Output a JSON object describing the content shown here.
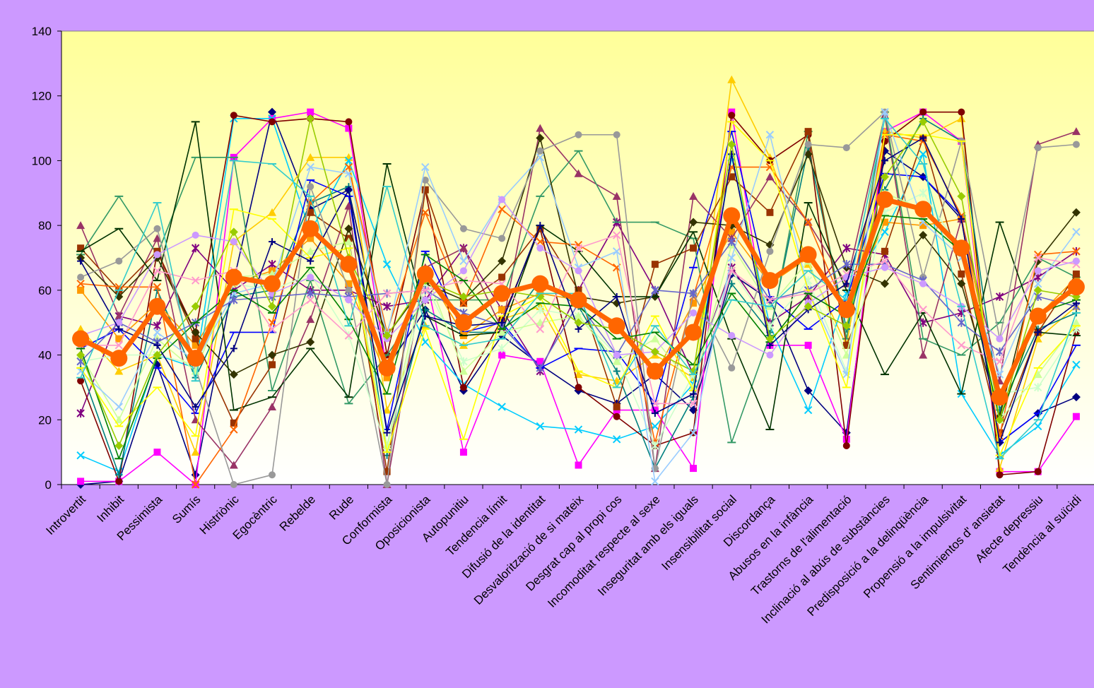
{
  "chart_data": {
    "type": "line",
    "ylim": [
      0,
      140
    ],
    "y_ticks": [
      0,
      20,
      40,
      60,
      80,
      100,
      120,
      140
    ],
    "grid": false,
    "legend": "none",
    "categories": [
      "Introvertit",
      "Inhibit",
      "Pessimista",
      "Sumís",
      "Histriònic",
      "Egocèntric",
      "Rebelde",
      "Rude",
      "Conformista",
      "Oposicionista",
      "Autopunitiu",
      "Tendencia límit",
      "Difusió de la identitat",
      "Desvalorització de si mateix",
      "Desgrat cap al propi cos",
      "Incomoditat respecte al sexe",
      "Inseguritat amb els iguals",
      "Insensibilitat social",
      "Discordança",
      "Abusos en la infància",
      "Trastorns de l'alimentació",
      "Inclinació al abús de substàncies",
      "Predisposició a la delinqüència",
      "Propensió a la impulsivitat",
      "Sentimientos d' ansietat",
      "Afecte depressiu",
      "Tendència al suïcidi"
    ],
    "mean_series": {
      "color": "#ff6600",
      "values": [
        45,
        39,
        55,
        39,
        64,
        62,
        79,
        68,
        36,
        65,
        50,
        59,
        62,
        57,
        49,
        35,
        47,
        83,
        63,
        71,
        54,
        88,
        85,
        73,
        27,
        52,
        61
      ]
    },
    "series": [
      {
        "color": "#000080",
        "marker": "diamond",
        "values": [
          0,
          1,
          37,
          3,
          63,
          115,
          85,
          91,
          36,
          54,
          29,
          46,
          37,
          29,
          25,
          34,
          23,
          65,
          57,
          29,
          16,
          103,
          95,
          82,
          13,
          22,
          27
        ]
      },
      {
        "color": "#ff00ff",
        "marker": "square",
        "values": [
          1,
          1,
          10,
          0,
          101,
          113,
          115,
          110,
          35,
          65,
          10,
          40,
          38,
          6,
          23,
          23,
          5,
          115,
          43,
          43,
          14,
          109,
          115,
          106,
          4,
          4,
          21
        ]
      },
      {
        "color": "#ffcc00",
        "marker": "triangle",
        "values": [
          48,
          35,
          40,
          10,
          75,
          84,
          101,
          101,
          23,
          49,
          43,
          51,
          55,
          34,
          32,
          40,
          33,
          125,
          101,
          68,
          43,
          109,
          107,
          113,
          5,
          45,
          55
        ]
      },
      {
        "color": "#00ccff",
        "marker": "x",
        "values": [
          9,
          4,
          40,
          36,
          113,
          113,
          78,
          100,
          68,
          44,
          31,
          24,
          18,
          17,
          14,
          18,
          31,
          101,
          49,
          23,
          59,
          78,
          102,
          28,
          9,
          18,
          37
        ]
      },
      {
        "color": "#800080",
        "marker": "star",
        "values": [
          22,
          52,
          49,
          73,
          60,
          68,
          60,
          60,
          55,
          57,
          73,
          54,
          35,
          60,
          81,
          60,
          34,
          67,
          50,
          58,
          73,
          71,
          50,
          53,
          58,
          64,
          72
        ]
      },
      {
        "color": "#800000",
        "marker": "circle",
        "values": [
          32,
          1,
          72,
          47,
          114,
          112,
          113,
          112,
          40,
          91,
          30,
          51,
          79,
          30,
          21,
          12,
          16,
          114,
          100,
          108,
          12,
          106,
          115,
          115,
          3,
          4,
          47
        ]
      },
      {
        "color": "#008080",
        "marker": "plus",
        "values": [
          36,
          3,
          60,
          33,
          58,
          60,
          87,
          92,
          9,
          54,
          47,
          47,
          63,
          55,
          35,
          5,
          27,
          62,
          47,
          104,
          48,
          91,
          113,
          106,
          23,
          48,
          53
        ]
      },
      {
        "color": "#0000ff",
        "marker": "dash",
        "values": [
          42,
          48,
          36,
          22,
          47,
          47,
          94,
          89,
          17,
          72,
          47,
          50,
          36,
          42,
          41,
          25,
          67,
          109,
          58,
          48,
          57,
          96,
          95,
          83,
          13,
          22,
          43
        ]
      },
      {
        "color": "#ff9900",
        "marker": "square",
        "values": [
          60,
          45,
          56,
          43,
          62,
          66,
          76,
          62,
          33,
          66,
          46,
          54,
          59,
          57,
          50,
          34,
          56,
          78,
          62,
          70,
          54,
          81,
          80,
          82,
          26,
          52,
          64
        ]
      },
      {
        "color": "#993366",
        "marker": "triangle",
        "values": [
          80,
          52,
          76,
          20,
          6,
          24,
          51,
          86,
          0,
          67,
          73,
          48,
          110,
          96,
          89,
          5,
          89,
          76,
          95,
          81,
          62,
          114,
          40,
          82,
          32,
          105,
          109
        ]
      },
      {
        "color": "#339966",
        "marker": "dash",
        "values": [
          71,
          89,
          71,
          101,
          101,
          29,
          63,
          25,
          40,
          57,
          57,
          57,
          89,
          103,
          81,
          81,
          76,
          13,
          46,
          109,
          45,
          115,
          45,
          40,
          50,
          70,
          64
        ]
      },
      {
        "color": "#993300",
        "marker": "square",
        "values": [
          73,
          60,
          72,
          45,
          19,
          37,
          84,
          76,
          4,
          91,
          56,
          64,
          79,
          60,
          24,
          68,
          73,
          95,
          84,
          109,
          43,
          72,
          107,
          65,
          16,
          47,
          65
        ]
      },
      {
        "color": "#333300",
        "marker": "diamond",
        "values": [
          70,
          58,
          70,
          47,
          34,
          40,
          44,
          79,
          46,
          62,
          57,
          69,
          107,
          58,
          56,
          58,
          81,
          80,
          74,
          102,
          67,
          62,
          77,
          62,
          21,
          69,
          84
        ]
      },
      {
        "color": "#003300",
        "marker": "dash",
        "values": [
          72,
          79,
          63,
          112,
          23,
          27,
          42,
          27,
          99,
          52,
          46,
          47,
          80,
          72,
          58,
          58,
          78,
          45,
          17,
          87,
          60,
          34,
          53,
          28,
          81,
          47,
          46
        ]
      },
      {
        "color": "#ff6600",
        "marker": "x",
        "values": [
          62,
          61,
          61,
          0,
          17,
          50,
          87,
          98,
          47,
          84,
          56,
          85,
          75,
          74,
          67,
          13,
          58,
          98,
          98,
          81,
          53,
          108,
          106,
          83,
          15,
          71,
          72
        ]
      },
      {
        "color": "#999999",
        "marker": "circle",
        "values": [
          64,
          69,
          79,
          36,
          0,
          3,
          92,
          60,
          0,
          94,
          79,
          76,
          103,
          108,
          108,
          5,
          59,
          36,
          72,
          105,
          104,
          115,
          64,
          106,
          45,
          104,
          105
        ]
      },
      {
        "color": "#ccffcc",
        "marker": "star",
        "values": [
          38,
          40,
          40,
          37,
          62,
          60,
          65,
          46,
          11,
          62,
          38,
          42,
          54,
          52,
          40,
          12,
          34,
          66,
          49,
          63,
          35,
          84,
          90,
          72,
          28,
          30,
          48
        ]
      },
      {
        "color": "#ccff99",
        "marker": "triangle",
        "values": [
          40,
          20,
          45,
          35,
          64,
          65,
          72,
          75,
          12,
          66,
          35,
          47,
          50,
          52,
          38,
          45,
          30,
          74,
          55,
          69,
          40,
          90,
          85,
          74,
          20,
          34,
          50
        ]
      },
      {
        "color": "#99ccff",
        "marker": "x",
        "values": [
          35,
          24,
          47,
          38,
          59,
          62,
          98,
          96,
          46,
          98,
          69,
          88,
          101,
          67,
          72,
          1,
          16,
          70,
          108,
          60,
          34,
          115,
          81,
          70,
          34,
          62,
          78
        ]
      },
      {
        "color": "#6666cc",
        "marker": "star",
        "values": [
          38,
          50,
          44,
          50,
          57,
          58,
          59,
          58,
          59,
          60,
          53,
          49,
          36,
          56,
          40,
          60,
          59,
          75,
          57,
          60,
          68,
          68,
          63,
          50,
          41,
          58,
          55
        ]
      },
      {
        "color": "#ffff00",
        "marker": "dash",
        "values": [
          36,
          18,
          30,
          15,
          85,
          82,
          70,
          73,
          10,
          48,
          14,
          52,
          58,
          35,
          30,
          52,
          29,
          112,
          100,
          60,
          30,
          108,
          108,
          106,
          9,
          36,
          49
        ]
      },
      {
        "color": "#ff99cc",
        "marker": "x",
        "values": [
          43,
          43,
          66,
          63,
          66,
          48,
          57,
          46,
          59,
          60,
          63,
          62,
          48,
          73,
          77,
          25,
          25,
          66,
          57,
          59,
          65,
          69,
          54,
          43,
          38,
          70,
          68
        ]
      },
      {
        "color": "#cc99ff",
        "marker": "circle",
        "values": [
          46,
          50,
          71,
          77,
          75,
          59,
          64,
          57,
          45,
          57,
          66,
          88,
          73,
          66,
          40,
          41,
          53,
          46,
          40,
          56,
          64,
          67,
          62,
          55,
          45,
          66,
          69
        ]
      },
      {
        "color": "#008000",
        "marker": "dash",
        "values": [
          42,
          8,
          39,
          50,
          60,
          53,
          67,
          51,
          28,
          71,
          63,
          48,
          56,
          55,
          45,
          47,
          37,
          59,
          44,
          59,
          52,
          83,
          82,
          72,
          20,
          53,
          57
        ]
      },
      {
        "color": "#000080",
        "marker": "plus",
        "values": [
          69,
          48,
          43,
          24,
          42,
          75,
          69,
          91,
          16,
          52,
          49,
          50,
          80,
          48,
          58,
          22,
          28,
          102,
          43,
          54,
          62,
          100,
          107,
          82,
          13,
          47,
          56
        ]
      },
      {
        "color": "#99cc00",
        "marker": "diamond",
        "values": [
          40,
          12,
          40,
          55,
          78,
          55,
          113,
          70,
          46,
          63,
          58,
          60,
          58,
          50,
          48,
          41,
          35,
          105,
          45,
          55,
          49,
          95,
          112,
          89,
          20,
          60,
          58
        ]
      },
      {
        "color": "#33cccc",
        "marker": "dash",
        "values": [
          33,
          60,
          87,
          32,
          100,
          99,
          89,
          49,
          92,
          49,
          43,
          45,
          59,
          59,
          30,
          49,
          34,
          57,
          55,
          66,
          57,
          113,
          99,
          55,
          8,
          20,
          53
        ]
      }
    ]
  }
}
